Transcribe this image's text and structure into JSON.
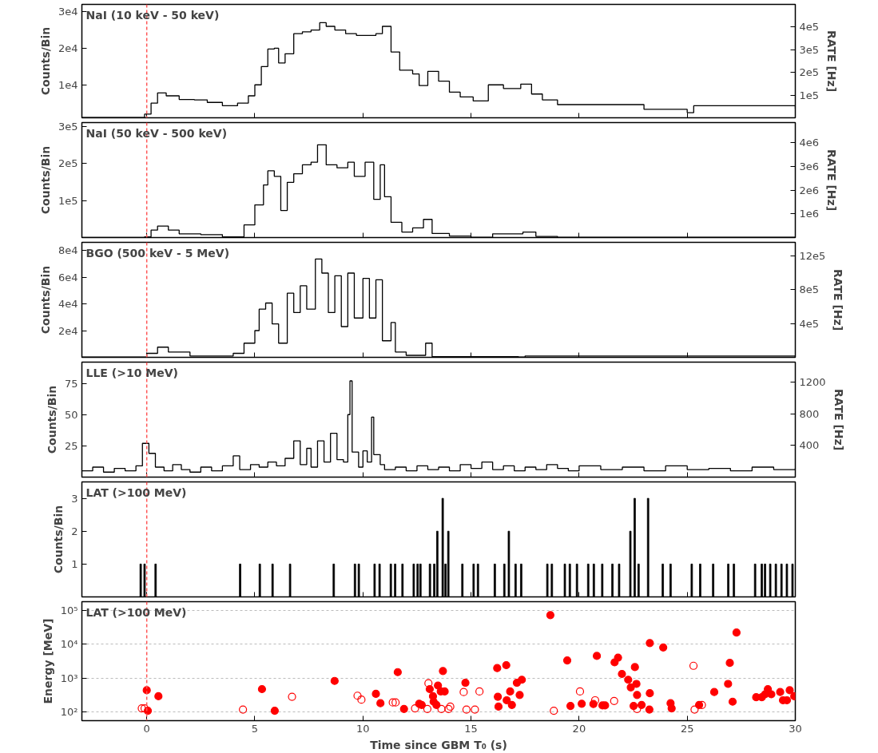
{
  "chart_data": [
    {
      "type": "step",
      "title": "NaI (10 keV - 50 keV)",
      "ylabel": "Counts/Bin",
      "y2label": "RATE [Hz]",
      "color": "#000000",
      "x": [
        -3,
        -0.3,
        -0.1,
        0.2,
        0.5,
        0.9,
        1.5,
        2.2,
        2.8,
        3.5,
        4.2,
        4.7,
        5.0,
        5.3,
        5.6,
        5.9,
        6.1,
        6.4,
        6.8,
        7.2,
        7.6,
        8.0,
        8.3,
        8.7,
        9.2,
        9.7,
        10.2,
        10.6,
        10.9,
        11.3,
        11.7,
        12.3,
        12.6,
        13.0,
        13.5,
        14.0,
        14.5,
        15.1,
        15.8,
        16.5,
        17.3,
        17.8,
        18.3,
        19.0,
        21.0,
        23.0,
        25.0,
        25.3,
        27.0,
        29.0,
        30
      ],
      "values": [
        1100,
        1100,
        2000,
        5000,
        7800,
        7000,
        6000,
        5900,
        5200,
        4300,
        5000,
        7000,
        10000,
        15000,
        19800,
        20000,
        16000,
        18500,
        24000,
        24500,
        25000,
        27000,
        26000,
        25000,
        24000,
        23500,
        23500,
        24000,
        26000,
        19000,
        14000,
        13000,
        9800,
        13700,
        11000,
        8000,
        6700,
        5600,
        10000,
        9000,
        10200,
        7500,
        5900,
        4600,
        4600,
        3300,
        2400,
        4300,
        4300,
        4300,
        3500
      ],
      "xlim": [
        -3,
        30
      ],
      "xticks": [
        0,
        5,
        10,
        15,
        20,
        25,
        30
      ],
      "ylim": [
        1000,
        32000
      ],
      "yticks": [
        {
          "value": 10000,
          "label": "1e4"
        },
        {
          "value": 20000,
          "label": "2e4"
        },
        {
          "value": 30000,
          "label": "3e4"
        }
      ],
      "y2lim": [
        0,
        500000
      ],
      "y2ticks": [
        {
          "value": 100000,
          "label": "1e5"
        },
        {
          "value": 200000,
          "label": "2e5"
        },
        {
          "value": 300000,
          "label": "3e5"
        },
        {
          "value": 400000,
          "label": "4e5"
        }
      ],
      "tick_labels": "y",
      "ref_lines": [
        {
          "axis": "x",
          "value": 0,
          "color": "#ff5555",
          "line_style": "dashed"
        }
      ]
    },
    {
      "type": "step",
      "title": "NaI (50 keV - 500 keV)",
      "ylabel": "Counts/Bin",
      "y2label": "RATE [Hz]",
      "color": "#000000",
      "x": [
        -3,
        -0.1,
        0.2,
        0.5,
        1.0,
        1.5,
        2.5,
        3.5,
        4.5,
        5.0,
        5.4,
        5.6,
        5.9,
        6.2,
        6.5,
        6.8,
        7.2,
        7.6,
        7.9,
        8.3,
        8.8,
        9.3,
        9.6,
        10.1,
        10.5,
        10.8,
        11.0,
        11.3,
        11.8,
        12.3,
        12.8,
        13.2,
        14.0,
        15.0,
        16.0,
        17.0,
        17.4,
        18.0,
        19.0,
        30
      ],
      "values": [
        0,
        2000,
        20000,
        31000,
        20000,
        10000,
        8000,
        2000,
        34000,
        88000,
        142000,
        180000,
        165000,
        73000,
        149000,
        172000,
        196000,
        203000,
        250000,
        196000,
        188000,
        203000,
        165000,
        203000,
        103000,
        196000,
        110000,
        41000,
        15000,
        26000,
        49000,
        11000,
        4000,
        1000,
        10000,
        10000,
        15000,
        3000,
        1000,
        1000
      ],
      "xlim": [
        -3,
        30
      ],
      "xticks": [
        0,
        5,
        10,
        15,
        20,
        25,
        30
      ],
      "ylim": [
        0,
        310000
      ],
      "yticks": [
        {
          "value": 100000,
          "label": "1e5"
        },
        {
          "value": 200000,
          "label": "2e5"
        },
        {
          "value": 300000,
          "label": "3e5"
        }
      ],
      "y2lim": [
        0,
        4850000
      ],
      "y2ticks": [
        {
          "value": 1000000,
          "label": "1e6"
        },
        {
          "value": 2000000,
          "label": "2e6"
        },
        {
          "value": 3000000,
          "label": "3e6"
        },
        {
          "value": 4000000,
          "label": "4e6"
        }
      ],
      "tick_labels": "y",
      "ref_lines": [
        {
          "axis": "x",
          "value": 0,
          "color": "#ff5555",
          "line_style": "dashed"
        }
      ]
    },
    {
      "type": "step",
      "title": "BGO (500 keV - 5 MeV)",
      "ylabel": "Counts/Bin",
      "y2label": "RATE [Hz]",
      "color": "#000000",
      "x": [
        -3,
        -0.3,
        0.0,
        0.5,
        1.0,
        2.0,
        4.0,
        4.5,
        5.0,
        5.2,
        5.5,
        5.8,
        6.1,
        6.5,
        6.8,
        7.1,
        7.4,
        7.8,
        8.1,
        8.4,
        8.7,
        9.0,
        9.3,
        9.6,
        10.0,
        10.3,
        10.6,
        10.9,
        11.3,
        11.5,
        12.0,
        12.9,
        13.2,
        17.2,
        17.5,
        30
      ],
      "values": [
        200,
        200,
        3000,
        7600,
        4000,
        1000,
        3000,
        10600,
        20000,
        36000,
        40600,
        25000,
        10600,
        48000,
        33500,
        53500,
        36000,
        73500,
        63000,
        33500,
        61000,
        23000,
        63000,
        29400,
        59000,
        29400,
        58000,
        12400,
        26000,
        4000,
        1500,
        10600,
        500,
        200,
        1000,
        200
      ],
      "xlim": [
        -3,
        30
      ],
      "xticks": [
        0,
        5,
        10,
        15,
        20,
        25,
        30
      ],
      "ylim": [
        0,
        86000
      ],
      "yticks": [
        {
          "value": 20000,
          "label": "2e4"
        },
        {
          "value": 40000,
          "label": "4e4"
        },
        {
          "value": 60000,
          "label": "6e4"
        },
        {
          "value": 80000,
          "label": "8e4"
        }
      ],
      "y2lim": [
        0,
        1360000
      ],
      "y2ticks": [
        {
          "value": 400000,
          "label": "4e5"
        },
        {
          "value": 800000,
          "label": "8e5"
        },
        {
          "value": 1200000,
          "label": "12e5"
        }
      ],
      "tick_labels": "y",
      "ref_lines": [
        {
          "axis": "x",
          "value": 0,
          "color": "#ff5555",
          "line_style": "dashed"
        }
      ]
    },
    {
      "type": "step",
      "title": "LLE (>10 MeV)",
      "ylabel": "Counts/Bin",
      "y2label": "RATE [Hz]",
      "color": "#000000",
      "x": [
        -3,
        -2.5,
        -2,
        -1.5,
        -1,
        -0.5,
        -0.2,
        0.1,
        0.4,
        0.8,
        1.2,
        1.6,
        2,
        2.5,
        3,
        3.5,
        4,
        4.3,
        4.8,
        5.2,
        5.6,
        6,
        6.4,
        6.8,
        7.1,
        7.4,
        7.6,
        7.9,
        8.2,
        8.5,
        8.8,
        9.1,
        9.3,
        9.4,
        9.5,
        9.8,
        10,
        10.2,
        10.4,
        10.5,
        10.8,
        11,
        11.5,
        12,
        12.5,
        13,
        13.5,
        14,
        14.5,
        15,
        15.5,
        16,
        16.5,
        17,
        17.5,
        18,
        18.5,
        19,
        19.5,
        20,
        21,
        22,
        23,
        24,
        25,
        26,
        27,
        28,
        29,
        30
      ],
      "values": [
        5,
        8,
        4,
        7,
        5,
        9,
        27,
        19,
        8,
        5,
        10,
        6,
        4,
        8,
        5,
        9,
        17,
        6,
        10,
        8,
        12,
        9,
        15,
        29,
        10,
        23,
        8,
        29,
        12,
        35,
        14,
        12,
        50,
        77,
        20,
        8,
        21,
        12,
        48,
        18,
        10,
        6,
        8,
        5,
        9,
        6,
        8,
        5,
        10,
        7,
        12,
        6,
        9,
        5,
        8,
        6,
        10,
        7,
        5,
        9,
        6,
        8,
        5,
        9,
        6,
        7,
        5,
        8,
        6,
        7
      ],
      "xlim": [
        -3,
        30
      ],
      "xticks": [
        0,
        5,
        10,
        15,
        20,
        25,
        30
      ],
      "ylim": [
        0,
        92
      ],
      "yticks": [
        25,
        50,
        75
      ],
      "y2lim": [
        0,
        1450
      ],
      "y2ticks": [
        400,
        800,
        1200
      ],
      "tick_labels": "y",
      "ref_lines": [
        {
          "axis": "x",
          "value": 0,
          "color": "#ff5555",
          "line_style": "dashed"
        }
      ]
    },
    {
      "type": "bar",
      "title": "LAT (>100 MeV)",
      "ylabel": "Counts/Bin",
      "color": "#000000",
      "x": [
        -0.28,
        -0.1,
        0.41,
        4.32,
        5.23,
        5.82,
        6.63,
        8.65,
        9.63,
        9.81,
        10.54,
        10.77,
        11.29,
        11.49,
        11.83,
        12.35,
        12.53,
        12.66,
        13.1,
        13.3,
        13.44,
        13.69,
        13.82,
        13.95,
        14.6,
        15.12,
        15.32,
        16.1,
        16.54,
        16.75,
        17.06,
        17.32,
        18.53,
        18.74,
        19.34,
        19.57,
        19.9,
        20.42,
        20.68,
        21.07,
        21.54,
        21.85,
        22.37,
        22.57,
        22.75,
        23.19,
        23.87,
        24.23,
        25.21,
        25.6,
        26.2,
        26.9,
        27.16,
        28.14,
        28.45,
        28.6,
        28.84,
        29.1,
        29.36,
        29.61,
        29.87
      ],
      "values": [
        1,
        1,
        1,
        1,
        1,
        1,
        1,
        1,
        1,
        1,
        1,
        1,
        1,
        1,
        1,
        1,
        1,
        1,
        1,
        1,
        2,
        3,
        1,
        2,
        1,
        1,
        1,
        1,
        1,
        2,
        1,
        1,
        1,
        1,
        1,
        1,
        1,
        1,
        1,
        1,
        1,
        1,
        2,
        3,
        1,
        3,
        1,
        1,
        1,
        1,
        1,
        1,
        1,
        1,
        1,
        1,
        1,
        1,
        1,
        1,
        1
      ],
      "xlim": [
        -3,
        30
      ],
      "xticks": [
        0,
        5,
        10,
        15,
        20,
        25,
        30
      ],
      "ylim": [
        0,
        3.5
      ],
      "yticks": [
        1,
        2,
        3
      ],
      "tick_labels": "y",
      "ref_lines": [
        {
          "axis": "x",
          "value": 0,
          "color": "#ff5555",
          "line_style": "dashed"
        }
      ]
    },
    {
      "type": "scatter",
      "title": "LAT (>100 MeV)",
      "ylabel": "Energy [MeV]",
      "xlabel": "Time since GBM T₀ (s)",
      "log": "y",
      "grid": "y",
      "series": [
        {
          "color": "#ff0000",
          "marker": "circle",
          "x": [
            0,
            0.05,
            0.54,
            5.33,
            5.92,
            8.69,
            10.6,
            10.81,
            11.61,
            11.9,
            12.6,
            12.72,
            13.09,
            13.24,
            13.27,
            13.4,
            13.47,
            13.6,
            13.7,
            13.78,
            14.74,
            16.21,
            16.24,
            16.27,
            16.63,
            16.65,
            16.81,
            16.89,
            17.12,
            17.25,
            17.35,
            18.67,
            19.45,
            19.6,
            20.12,
            20.66,
            20.82,
            21.08,
            21.2,
            21.64,
            21.8,
            21.98,
            22.27,
            22.39,
            22.52,
            22.58,
            22.65,
            22.68,
            22.89,
            23.27,
            23.27,
            23.25,
            23.89,
            24.23,
            24.28,
            25.55,
            26.25,
            26.89,
            26.97,
            27.1,
            27.28,
            28.19,
            28.45,
            28.6,
            28.73,
            28.89,
            29.3,
            29.43,
            29.61,
            29.74,
            29.95
          ],
          "values": [
            435,
            108,
            290,
            470,
            108,
            820,
            340,
            180,
            1490,
            122,
            174,
            160,
            470,
            290,
            200,
            160,
            600,
            400,
            1610,
            400,
            725,
            1960,
            280,
            143,
            2400,
            220,
            400,
            160,
            725,
            315,
            890,
            72000,
            3300,
            150,
            174,
            170,
            4500,
            155,
            155,
            2900,
            4000,
            1320,
            890,
            530,
            150,
            2100,
            670,
            315,
            160,
            10800,
            355,
            117,
            8000,
            180,
            127,
            160,
            385,
            670,
            2800,
            200,
            22000,
            270,
            270,
            330,
            470,
            330,
            385,
            220,
            220,
            435,
            290
          ]
        },
        {
          "color": "#ff0000",
          "marker": "circle_open",
          "x": [
            -0.23,
            -0.1,
            4.45,
            6.72,
            9.75,
            9.93,
            11.38,
            11.51,
            12.41,
            12.98,
            13.03,
            13.63,
            13.96,
            14.04,
            14.66,
            14.79,
            15.18,
            15.39,
            18.83,
            20.04,
            20.74,
            21.62,
            22.68,
            25.29,
            25.34,
            25.68
          ],
          "values": [
            127,
            127,
            117,
            280,
            300,
            230,
            190,
            190,
            127,
            122,
            700,
            122,
            122,
            143,
            385,
            117,
            117,
            400,
            108,
            400,
            220,
            210,
            122,
            2300,
            117,
            160
          ]
        }
      ],
      "xlim": [
        -3,
        30
      ],
      "xticks": [
        0,
        5,
        10,
        15,
        20,
        25,
        30
      ],
      "ylim": [
        55,
        180000
      ],
      "yticks": [
        {
          "value": 100,
          "label": "10²"
        },
        {
          "value": 1000,
          "label": "10³"
        },
        {
          "value": 10000,
          "label": "10⁴"
        },
        {
          "value": 100000,
          "label": "10⁵"
        }
      ],
      "ref_lines": [
        {
          "axis": "x",
          "value": 0,
          "color": "#ff5555",
          "line_style": "dashed"
        }
      ]
    }
  ]
}
